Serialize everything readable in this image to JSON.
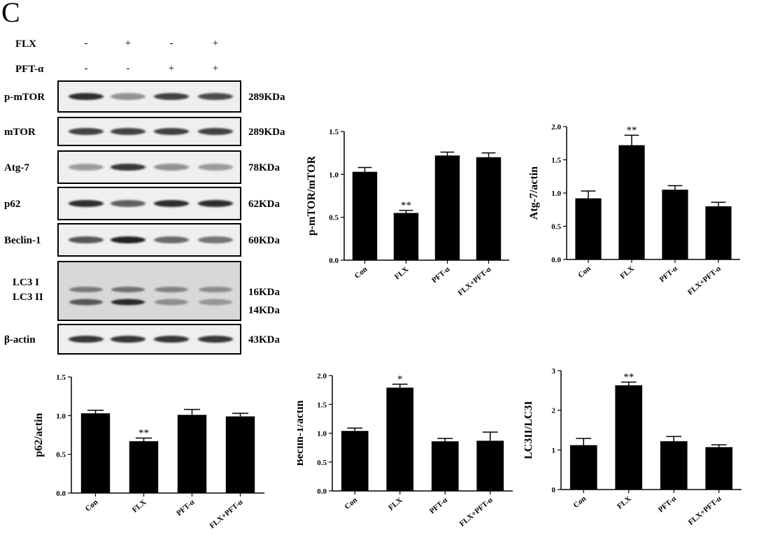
{
  "panel_label": "C",
  "western_blot": {
    "treatments": [
      {
        "name": "FLX",
        "signs": [
          "-",
          "+",
          "-",
          "+"
        ]
      },
      {
        "name": "PFT-α",
        "signs": [
          "-",
          "-",
          "+",
          "+"
        ]
      }
    ],
    "bands": [
      {
        "name": "p-mTOR",
        "size": "289KDa",
        "intensity": [
          0.95,
          0.45,
          0.85,
          0.8
        ]
      },
      {
        "name": "mTOR",
        "size": "289KDa",
        "intensity": [
          0.85,
          0.85,
          0.85,
          0.85
        ]
      },
      {
        "name": "Atg-7",
        "size": "78KDa",
        "intensity": [
          0.4,
          0.9,
          0.45,
          0.4
        ]
      },
      {
        "name": "p62",
        "size": "62KDa",
        "intensity": [
          0.95,
          0.7,
          0.95,
          0.95
        ]
      },
      {
        "name": "Beclin-1",
        "size": "60KDa",
        "intensity": [
          0.75,
          1.0,
          0.65,
          0.6
        ]
      },
      {
        "name": "LC3 I / LC3 II",
        "label_lines": [
          "LC3 I",
          "LC3 II"
        ],
        "sizes": [
          "16KDa",
          "14KDa"
        ],
        "intensity": [
          0.55,
          0.6,
          0.5,
          0.45
        ],
        "intensity2": [
          0.7,
          0.95,
          0.4,
          0.35
        ]
      },
      {
        "name": "β-actin",
        "size": "43KDa",
        "intensity": [
          0.9,
          0.9,
          0.9,
          0.9
        ]
      }
    ]
  },
  "chart_data": [
    {
      "type": "bar",
      "ylabel": "p-mTOR/mTOR",
      "categories": [
        "Con",
        "FLX",
        "PFT-α",
        "FLX+PFT-α"
      ],
      "values": [
        1.03,
        0.55,
        1.22,
        1.2
      ],
      "errors": [
        0.05,
        0.03,
        0.04,
        0.05
      ],
      "significance": [
        "",
        "**",
        "",
        ""
      ],
      "ylim": [
        0,
        1.5
      ],
      "yticks": [
        "0.0",
        "0.5",
        "1.0",
        "1.5"
      ]
    },
    {
      "type": "bar",
      "ylabel": "Atg-7/actin",
      "categories": [
        "Con",
        "FLX",
        "PFT-α",
        "FLX+PFT-α"
      ],
      "values": [
        0.92,
        1.72,
        1.05,
        0.8
      ],
      "errors": [
        0.11,
        0.15,
        0.06,
        0.06
      ],
      "significance": [
        "",
        "**",
        "",
        ""
      ],
      "ylim": [
        0,
        2.0
      ],
      "yticks": [
        "0.0",
        "0.5",
        "1.0",
        "1.5",
        "2.0"
      ]
    },
    {
      "type": "bar",
      "ylabel": "p62/actin",
      "categories": [
        "Con",
        "FLX",
        "PFT-α",
        "FLX+PFT-α"
      ],
      "values": [
        1.03,
        0.67,
        1.01,
        0.99
      ],
      "errors": [
        0.04,
        0.04,
        0.07,
        0.04
      ],
      "significance": [
        "",
        "**",
        "",
        ""
      ],
      "ylim": [
        0,
        1.5
      ],
      "yticks": [
        "0.0",
        "0.5",
        "1.0",
        "1.5"
      ]
    },
    {
      "type": "bar",
      "ylabel": "Beclin-1/actin",
      "categories": [
        "Con",
        "FLX",
        "PFT-α",
        "FLX+PFT-α"
      ],
      "values": [
        1.04,
        1.79,
        0.86,
        0.87
      ],
      "errors": [
        0.05,
        0.06,
        0.05,
        0.15
      ],
      "significance": [
        "",
        "*",
        "",
        ""
      ],
      "ylim": [
        0,
        2.0
      ],
      "yticks": [
        "0.0",
        "0.5",
        "1.0",
        "1.5",
        "2.0"
      ]
    },
    {
      "type": "bar",
      "ylabel": "LC3II/LC3I",
      "categories": [
        "Con",
        "FLX",
        "PFT-α",
        "FLX+PFT-α"
      ],
      "values": [
        1.12,
        2.63,
        1.22,
        1.07
      ],
      "errors": [
        0.17,
        0.08,
        0.12,
        0.06
      ],
      "significance": [
        "",
        "**",
        "",
        ""
      ],
      "ylim": [
        0,
        3
      ],
      "yticks": [
        "0",
        "1",
        "2",
        "3"
      ]
    }
  ]
}
